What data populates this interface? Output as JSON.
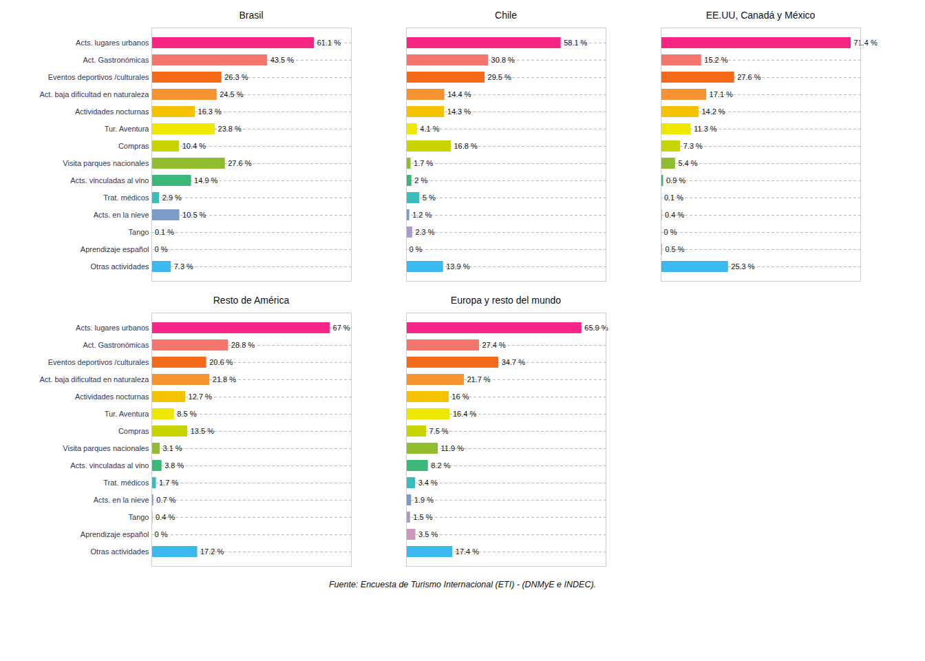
{
  "chart_data": [
    {
      "type": "bar",
      "orientation": "horizontal",
      "title": "Brasil",
      "categories": [
        "Acts. lugares urbanos",
        "Act. Gastronómicas",
        "Eventos deportivos /culturales",
        "Act. baja dificultad en naturaleza",
        "Actividades nocturnas",
        "Tur. Aventura",
        "Compras",
        "Visita parques nacionales",
        "Acts. vinculadas al vino",
        "Trat. médicos",
        "Acts. en la nieve",
        "Tango",
        "Aprendizaje español",
        "Otras actividades"
      ],
      "values": [
        61.1,
        43.5,
        26.3,
        24.5,
        16.3,
        23.8,
        10.4,
        27.6,
        14.9,
        2.9,
        10.5,
        0.1,
        0,
        7.3
      ],
      "value_labels": [
        "61.1 %",
        "43.5 %",
        "26.3 %",
        "24.5 %",
        "16.3 %",
        "23.8 %",
        "10.4 %",
        "27.6 %",
        "14.9 %",
        "2.9 %",
        "10.5 %",
        "0.1 %",
        "0 %",
        "7.3 %"
      ],
      "colors": [
        "#F72585",
        "#F4756B",
        "#F46A1A",
        "#F79233",
        "#F5C200",
        "#EEE800",
        "#C8D400",
        "#90BC2E",
        "#3AB87A",
        "#3ABCBC",
        "#7B9CC8",
        "#AA99CC",
        "#CC99BB",
        "#3BB8EE"
      ],
      "xlim": [
        0,
        75
      ],
      "grid": true,
      "data_labels": true,
      "tick_labels": "y"
    },
    {
      "type": "bar",
      "orientation": "horizontal",
      "title": "Chile",
      "categories": [
        "Acts. lugares urbanos",
        "Act. Gastronómicas",
        "Eventos deportivos /culturales",
        "Act. baja dificultad en naturaleza",
        "Actividades nocturnas",
        "Tur. Aventura",
        "Compras",
        "Visita parques nacionales",
        "Acts. vinculadas al vino",
        "Trat. médicos",
        "Acts. en la nieve",
        "Tango",
        "Aprendizaje español",
        "Otras actividades"
      ],
      "values": [
        58.1,
        30.8,
        29.5,
        14.4,
        14.3,
        4.1,
        16.8,
        1.7,
        2.0,
        5.0,
        1.2,
        2.3,
        0,
        13.9
      ],
      "value_labels": [
        "58.1 %",
        "30.8 %",
        "29.5 %",
        "14.4 %",
        "14.3 %",
        "4.1 %",
        "16.8 %",
        "1.7 %",
        "2 %",
        "5 %",
        "1.2 %",
        "2.3 %",
        "0 %",
        "13.9 %"
      ],
      "colors": [
        "#F72585",
        "#F4756B",
        "#F46A1A",
        "#F79233",
        "#F5C200",
        "#EEE800",
        "#C8D400",
        "#90BC2E",
        "#3AB87A",
        "#3ABCBC",
        "#7B9CC8",
        "#AA99CC",
        "#CC99BB",
        "#3BB8EE"
      ],
      "xlim": [
        0,
        75
      ],
      "grid": true,
      "data_labels": true,
      "tick_labels": false
    },
    {
      "type": "bar",
      "orientation": "horizontal",
      "title": "EE.UU, Canadá y México",
      "categories": [
        "Acts. lugares urbanos",
        "Act. Gastronómicas",
        "Eventos deportivos /culturales",
        "Act. baja dificultad en naturaleza",
        "Actividades nocturnas",
        "Tur. Aventura",
        "Compras",
        "Visita parques nacionales",
        "Acts. vinculadas al vino",
        "Trat. médicos",
        "Acts. en la nieve",
        "Tango",
        "Aprendizaje español",
        "Otras actividades"
      ],
      "values": [
        71.4,
        15.2,
        27.6,
        17.1,
        14.2,
        11.3,
        7.3,
        5.4,
        0.9,
        0.1,
        0.4,
        0,
        0.5,
        25.3
      ],
      "value_labels": [
        "71.4 %",
        "15.2 %",
        "27.6 %",
        "17.1 %",
        "14.2 %",
        "11.3 %",
        "7.3 %",
        "5.4 %",
        "0.9 %",
        "0.1 %",
        "0.4 %",
        "0 %",
        "0.5 %",
        "25.3 %"
      ],
      "colors": [
        "#F72585",
        "#F4756B",
        "#F46A1A",
        "#F79233",
        "#F5C200",
        "#EEE800",
        "#C8D400",
        "#90BC2E",
        "#3AB87A",
        "#3ABCBC",
        "#7B9CC8",
        "#AA99CC",
        "#CC99BB",
        "#3BB8EE"
      ],
      "xlim": [
        0,
        75
      ],
      "grid": true,
      "data_labels": true,
      "tick_labels": false
    },
    {
      "type": "bar",
      "orientation": "horizontal",
      "title": "Resto de América",
      "categories": [
        "Acts. lugares urbanos",
        "Act. Gastronómicas",
        "Eventos deportivos /culturales",
        "Act. baja dificultad en naturaleza",
        "Actividades nocturnas",
        "Tur. Aventura",
        "Compras",
        "Visita parques nacionales",
        "Acts. vinculadas al vino",
        "Trat. médicos",
        "Acts. en la nieve",
        "Tango",
        "Aprendizaje español",
        "Otras actividades"
      ],
      "values": [
        67.0,
        28.8,
        20.6,
        21.8,
        12.7,
        8.5,
        13.5,
        3.1,
        3.8,
        1.7,
        0.7,
        0.4,
        0,
        17.2
      ],
      "value_labels": [
        "67 %",
        "28.8 %",
        "20.6 %",
        "21.8 %",
        "12.7 %",
        "8.5 %",
        "13.5 %",
        "3.1 %",
        "3.8 %",
        "1.7 %",
        "0.7 %",
        "0.4 %",
        "0 %",
        "17.2 %"
      ],
      "colors": [
        "#F72585",
        "#F4756B",
        "#F46A1A",
        "#F79233",
        "#F5C200",
        "#EEE800",
        "#C8D400",
        "#90BC2E",
        "#3AB87A",
        "#3ABCBC",
        "#7B9CC8",
        "#AA99CC",
        "#CC99BB",
        "#3BB8EE"
      ],
      "xlim": [
        0,
        75
      ],
      "grid": true,
      "data_labels": true,
      "tick_labels": "y"
    },
    {
      "type": "bar",
      "orientation": "horizontal",
      "title": "Europa y resto del mundo",
      "categories": [
        "Acts. lugares urbanos",
        "Act. Gastronómicas",
        "Eventos deportivos /culturales",
        "Act. baja dificultad en naturaleza",
        "Actividades nocturnas",
        "Tur. Aventura",
        "Compras",
        "Visita parques nacionales",
        "Acts. vinculadas al vino",
        "Trat. médicos",
        "Acts. en la nieve",
        "Tango",
        "Aprendizaje español",
        "Otras actividades"
      ],
      "values": [
        65.9,
        27.4,
        34.7,
        21.7,
        16.0,
        16.4,
        7.5,
        11.9,
        8.2,
        3.4,
        1.9,
        1.5,
        3.5,
        17.4
      ],
      "value_labels": [
        "65.9 %",
        "27.4 %",
        "34.7 %",
        "21.7 %",
        "16 %",
        "16.4 %",
        "7.5 %",
        "11.9 %",
        "8.2 %",
        "3.4 %",
        "1.9 %",
        "1.5 %",
        "3.5 %",
        "17.4 %"
      ],
      "colors": [
        "#F72585",
        "#F4756B",
        "#F46A1A",
        "#F79233",
        "#F5C200",
        "#EEE800",
        "#C8D400",
        "#90BC2E",
        "#3AB87A",
        "#3ABCBC",
        "#7B9CC8",
        "#AA99CC",
        "#CC99BB",
        "#3BB8EE"
      ],
      "xlim": [
        0,
        75
      ],
      "grid": true,
      "data_labels": true,
      "tick_labels": false
    }
  ],
  "caption": "Fuente: Encuesta de Turismo Internacional (ETI) - (DNMyE e INDEC)."
}
